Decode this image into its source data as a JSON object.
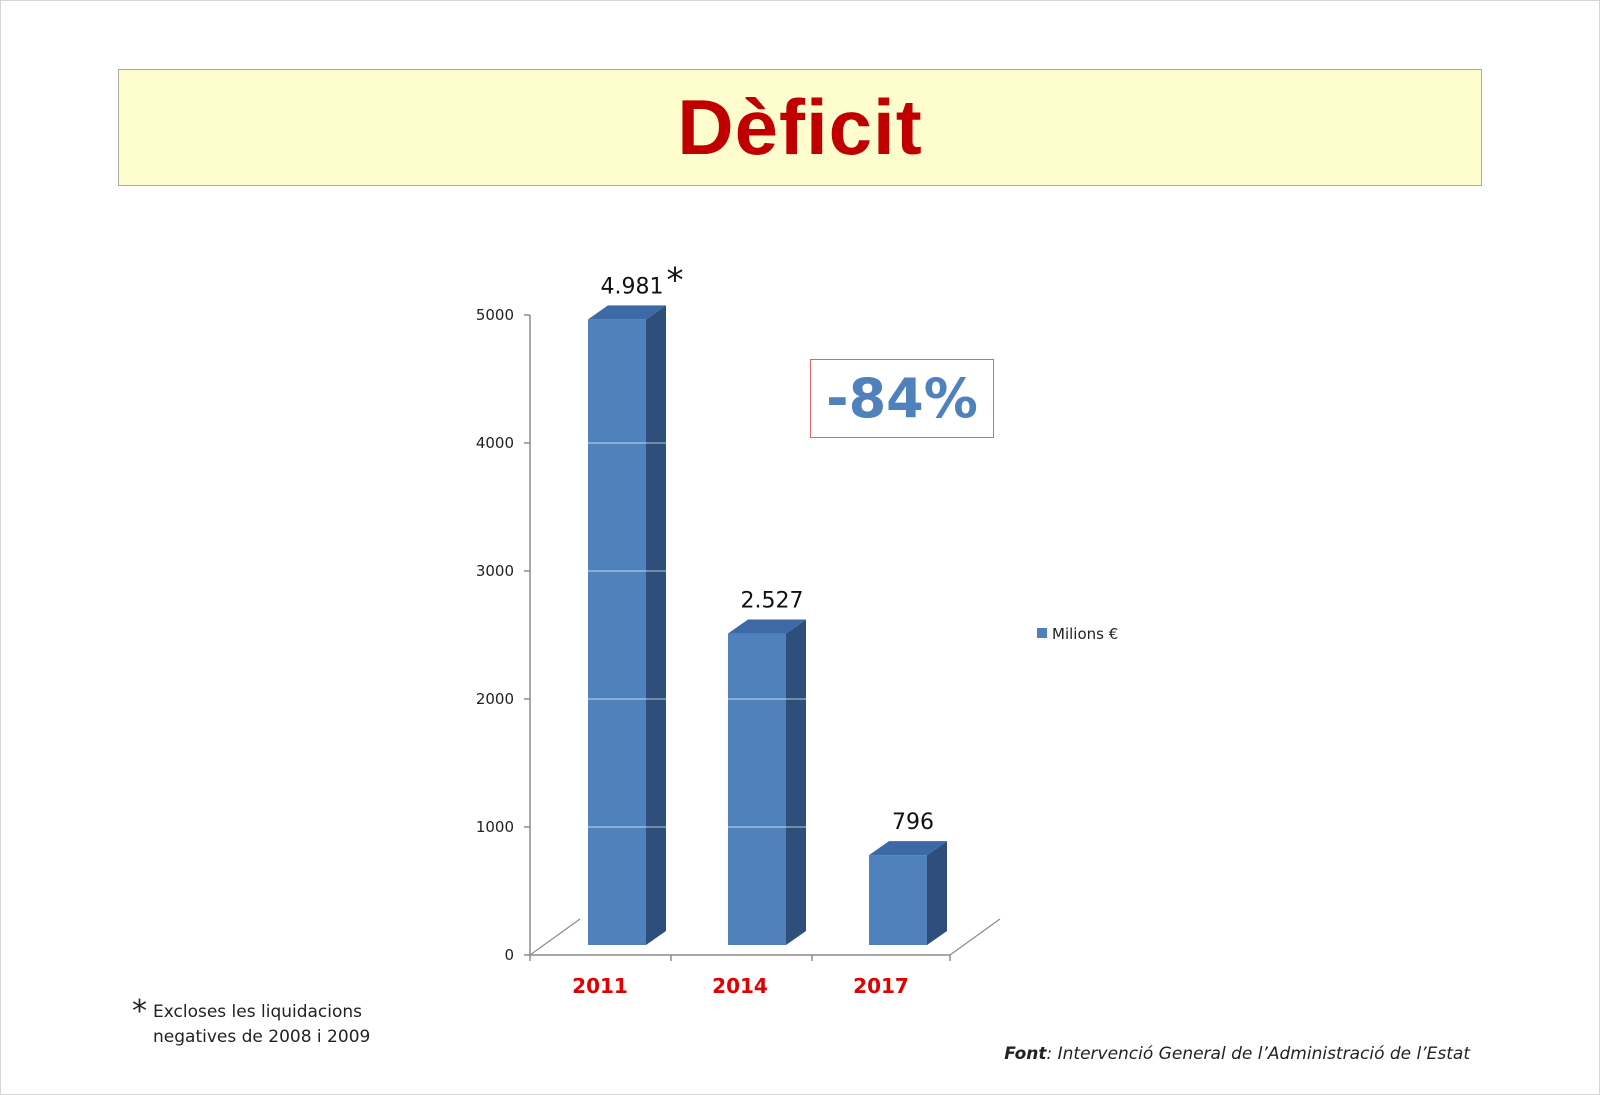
{
  "title": "Dèficit",
  "callout": "-84%",
  "footnote": {
    "marker": "*",
    "line1": "Excloses les liquidacions",
    "line2": "negatives de 2008 i 2009"
  },
  "source": {
    "label": "Font",
    "text": ": Intervenció General de l’Administració de l’Estat"
  },
  "colors": {
    "bar_front": "#4f81bd",
    "bar_side": "#2e4f7c",
    "bar_top": "#3d6aa6",
    "category_label": "#e00000",
    "title": "#c00000"
  },
  "chart_data": {
    "type": "bar",
    "categories": [
      "2011",
      "2014",
      "2017"
    ],
    "series": [
      {
        "name": "Milions €",
        "values": [
          4981,
          2527,
          796
        ]
      }
    ],
    "data_labels": [
      "4.981",
      "2.527",
      "796"
    ],
    "annotation_marker": "*",
    "y_ticks": [
      "0",
      "1000",
      "2000",
      "3000",
      "4000",
      "5000"
    ],
    "ylim": [
      0,
      5000
    ],
    "legend_position": "right",
    "grid": true,
    "style": "3d"
  }
}
